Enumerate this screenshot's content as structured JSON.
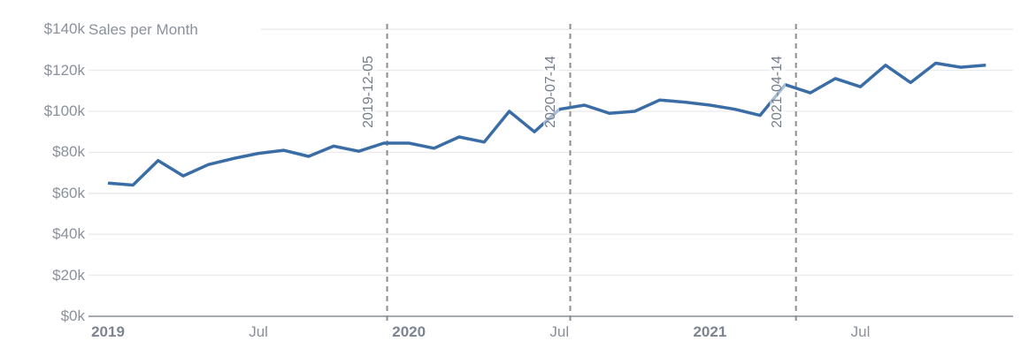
{
  "chart_data": {
    "type": "line",
    "title": "Sales per Month",
    "unit": "$k",
    "categories": [
      "2019-01",
      "2019-02",
      "2019-03",
      "2019-04",
      "2019-05",
      "2019-06",
      "2019-07",
      "2019-08",
      "2019-09",
      "2019-10",
      "2019-11",
      "2019-12",
      "2020-01",
      "2020-02",
      "2020-03",
      "2020-04",
      "2020-05",
      "2020-06",
      "2020-07",
      "2020-08",
      "2020-09",
      "2020-10",
      "2020-11",
      "2020-12",
      "2021-01",
      "2021-02",
      "2021-03",
      "2021-04",
      "2021-05",
      "2021-06",
      "2021-07",
      "2021-08",
      "2021-09",
      "2021-10",
      "2021-11",
      "2021-12"
    ],
    "values": [
      65,
      64,
      76,
      68.5,
      74,
      77,
      79.5,
      81,
      78,
      83,
      80.5,
      84.5,
      84.5,
      82,
      87.5,
      85,
      100,
      90,
      101,
      103,
      99,
      100,
      105.5,
      104.5,
      103,
      101,
      98,
      113,
      109,
      116,
      112,
      122.5,
      114,
      123.5,
      121.5,
      122.5
    ],
    "ylim": [
      0,
      140
    ],
    "y_ticks": [
      {
        "label": "$0k",
        "value": 0
      },
      {
        "label": "$20k",
        "value": 20
      },
      {
        "label": "$40k",
        "value": 40
      },
      {
        "label": "$60k",
        "value": 60
      },
      {
        "label": "$80k",
        "value": 80
      },
      {
        "label": "$100k",
        "value": 100
      },
      {
        "label": "$120k",
        "value": 120
      },
      {
        "label": "$140k",
        "value": 140
      }
    ],
    "x_ticks": [
      {
        "label": "2019",
        "month_index": 0,
        "bold": true
      },
      {
        "label": "Jul",
        "month_index": 6,
        "bold": false
      },
      {
        "label": "2020",
        "month_index": 12,
        "bold": true
      },
      {
        "label": "Jul",
        "month_index": 18,
        "bold": false
      },
      {
        "label": "2021",
        "month_index": 24,
        "bold": true
      },
      {
        "label": "Jul",
        "month_index": 30,
        "bold": false
      }
    ],
    "vlines": [
      {
        "label": "2019-12-05",
        "month_index": 11.13
      },
      {
        "label": "2020-07-14",
        "month_index": 18.43
      },
      {
        "label": "2021-04-14",
        "month_index": 27.43
      }
    ],
    "grid": "horizontal",
    "legend": "none"
  },
  "colors": {
    "line": "#3a6da5",
    "grid": "#e9eaec",
    "axis_line": "#878e98",
    "tick_label": "#8a919c",
    "year_label": "#7d8591",
    "vline": "#8d8d8d",
    "vline_label": "#767d88",
    "title": "#8a919c"
  }
}
